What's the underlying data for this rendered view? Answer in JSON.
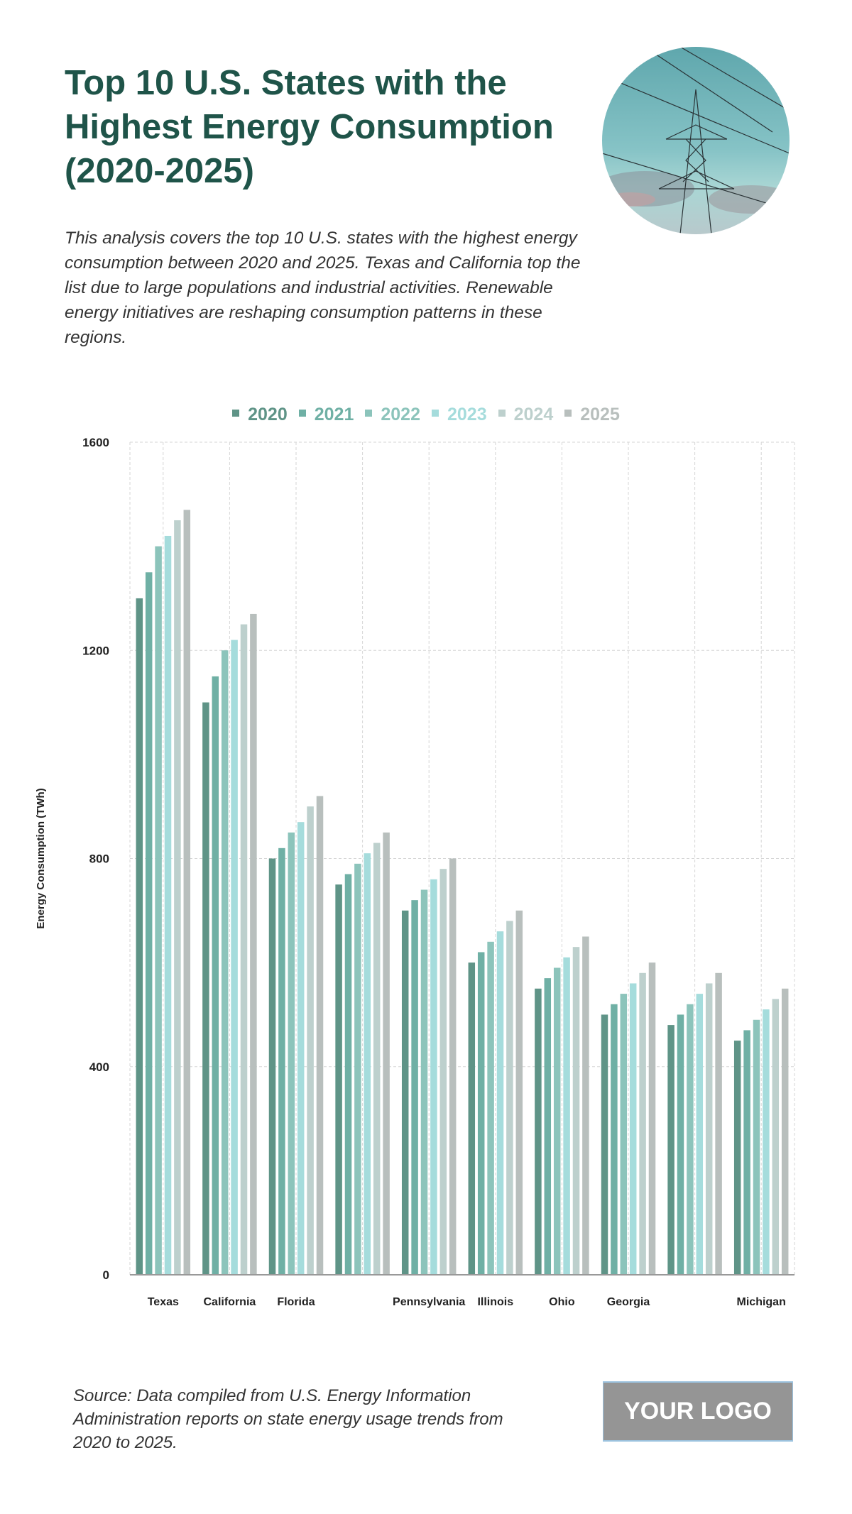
{
  "header": {
    "title": "Top 10 U.S. States with the Highest Energy Consumption (2020-2025)",
    "description": "This analysis covers the top 10 U.S. states with the highest energy consumption between 2020 and 2025. Texas and California top the list due to large populations and industrial activities. Renewable energy initiatives are reshaping consumption patterns in these regions.",
    "image": "power-transmission-tower-photo"
  },
  "chart_data": {
    "type": "bar",
    "title": "",
    "xlabel": "",
    "ylabel": "Energy Consumption (TWh)",
    "ylim": [
      0,
      1600
    ],
    "yticks": [
      "0",
      "400",
      "800",
      "1200",
      "1600"
    ],
    "grid": true,
    "legend_position": "top",
    "categories": [
      "Texas",
      "California",
      "Florida",
      "",
      "Pennsylvania",
      "Illinois",
      "Ohio",
      "Georgia",
      "",
      "Michigan"
    ],
    "series": [
      {
        "name": "2020",
        "color": "#5f9487",
        "values": [
          1300,
          1100,
          800,
          750,
          700,
          600,
          550,
          500,
          480,
          450
        ]
      },
      {
        "name": "2021",
        "color": "#6fb0a5",
        "values": [
          1350,
          1150,
          820,
          770,
          720,
          620,
          570,
          520,
          500,
          470
        ]
      },
      {
        "name": "2022",
        "color": "#8cc4bb",
        "values": [
          1400,
          1200,
          850,
          790,
          740,
          640,
          590,
          540,
          520,
          490
        ]
      },
      {
        "name": "2023",
        "color": "#a5dcdc",
        "values": [
          1420,
          1220,
          870,
          810,
          760,
          660,
          610,
          560,
          540,
          510
        ]
      },
      {
        "name": "2024",
        "color": "#bdd0cd",
        "values": [
          1450,
          1250,
          900,
          830,
          780,
          680,
          630,
          580,
          560,
          530
        ]
      },
      {
        "name": "2025",
        "color": "#b8bfbd",
        "values": [
          1470,
          1270,
          920,
          850,
          800,
          700,
          650,
          600,
          580,
          550
        ]
      }
    ]
  },
  "footer": {
    "source": "Source: Data compiled from U.S. Energy Information Administration reports on state energy usage trends from 2020 to 2025.",
    "logo": "YOUR LOGO"
  }
}
